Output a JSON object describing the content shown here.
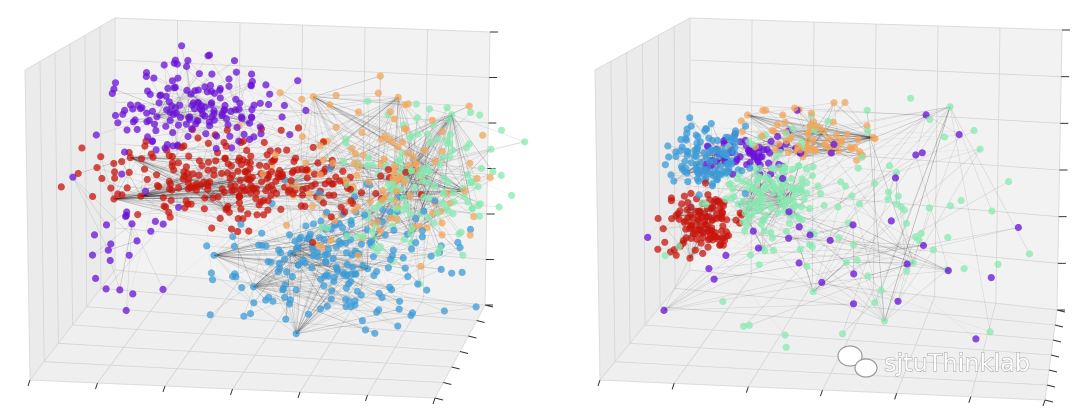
{
  "watermark": "sjtuThinklab"
}
